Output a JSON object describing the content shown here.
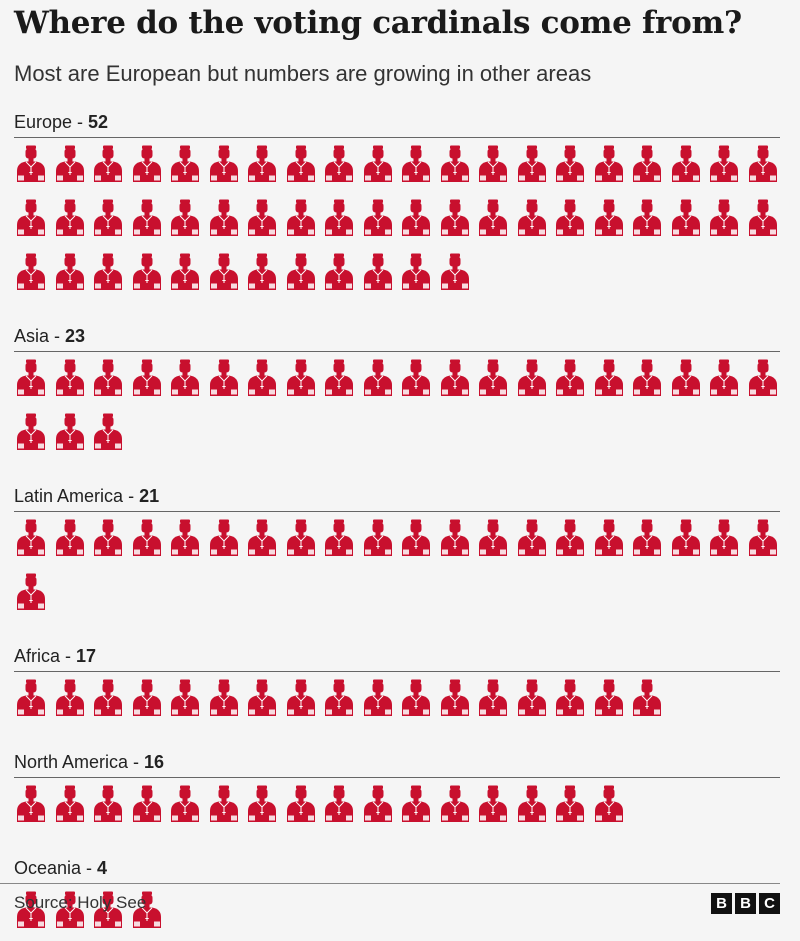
{
  "header": {
    "title": "Where do the voting cardinals come from?",
    "subtitle": "Most are European but numbers are growing in other areas"
  },
  "chart_data": {
    "type": "pictogram",
    "categories": [
      "Europe",
      "Asia",
      "Latin America",
      "Africa",
      "North America",
      "Oceania"
    ],
    "values": [
      52,
      23,
      21,
      17,
      16,
      4
    ],
    "icons_per_row": 20,
    "icon_name": "cardinal-icon",
    "color": "#c8102e"
  },
  "groups": [
    {
      "name": "Europe",
      "count_text": "52"
    },
    {
      "name": "Asia",
      "count_text": "23"
    },
    {
      "name": "Latin America",
      "count_text": "21"
    },
    {
      "name": "Africa",
      "count_text": "17"
    },
    {
      "name": "North America",
      "count_text": "16"
    },
    {
      "name": "Oceania",
      "count_text": "4"
    }
  ],
  "footer": {
    "source": "Source: Holy See",
    "logo_letters": [
      "B",
      "B",
      "C"
    ]
  }
}
